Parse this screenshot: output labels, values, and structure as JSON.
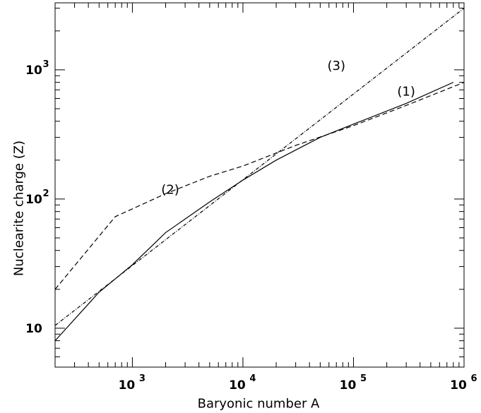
{
  "chart_data": {
    "type": "line",
    "xlabel": "Baryonic number A",
    "ylabel": "Nuclearite charge (Z)",
    "xscale": "log",
    "yscale": "log",
    "xlim": [
      200,
      1000000
    ],
    "ylim": [
      5,
      3300
    ],
    "x_ticks": [
      {
        "value": 1000,
        "base": "10",
        "exp": "3"
      },
      {
        "value": 10000,
        "base": "10",
        "exp": "4"
      },
      {
        "value": 100000,
        "base": "10",
        "exp": "5"
      },
      {
        "value": 1000000,
        "base": "10",
        "exp": "6"
      }
    ],
    "y_ticks": [
      {
        "value": 10,
        "base": "10",
        "exp": ""
      },
      {
        "value": 100,
        "base": "10",
        "exp": "2"
      },
      {
        "value": 1000,
        "base": "10",
        "exp": "3"
      }
    ],
    "grid": false,
    "series": [
      {
        "name": "(1)",
        "style": "solid",
        "label_at": [
          300000,
          630
        ],
        "x": [
          200,
          500,
          1000,
          2000,
          3000,
          5000,
          10000,
          20000,
          50000,
          100000,
          300000,
          800000
        ],
        "y": [
          8,
          19,
          31,
          55,
          70,
          95,
          140,
          200,
          300,
          380,
          550,
          800
        ]
      },
      {
        "name": "(2)",
        "style": "dashed",
        "label_at": [
          2200,
          110
        ],
        "x": [
          200,
          700,
          2000,
          5000,
          10000,
          30000,
          100000,
          300000,
          1000000
        ],
        "y": [
          20,
          73,
          110,
          150,
          180,
          260,
          370,
          530,
          800
        ]
      },
      {
        "name": "(3)",
        "style": "dashdot",
        "label_at": [
          70000,
          1000
        ],
        "x": [
          200,
          1000000
        ],
        "y": [
          10.5,
          3000
        ]
      }
    ]
  }
}
